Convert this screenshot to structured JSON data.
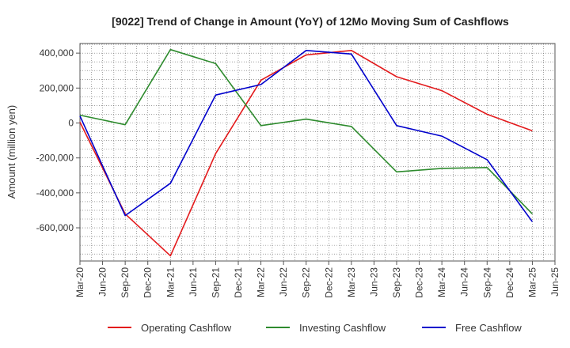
{
  "chart_data": {
    "type": "line",
    "title": "[9022]  Trend of Change in Amount (YoY) of 12Mo Moving Sum of Cashflows",
    "xlabel": "",
    "ylabel": "Amount (million yen)",
    "categories": [
      "Mar-20",
      "Jun-20",
      "Sep-20",
      "Dec-20",
      "Mar-21",
      "Jun-21",
      "Sep-21",
      "Dec-21",
      "Mar-22",
      "Jun-22",
      "Sep-22",
      "Dec-22",
      "Mar-23",
      "Jun-23",
      "Sep-23",
      "Dec-23",
      "Mar-24",
      "Jun-24",
      "Sep-24",
      "Dec-24",
      "Mar-25",
      "Jun-25"
    ],
    "y_ticks": [
      400000,
      200000,
      0,
      -200000,
      -400000,
      -600000
    ],
    "y_tick_labels": [
      "400,000",
      "200,000",
      "0",
      "-200,000",
      "-400,000",
      "-600,000"
    ],
    "ylim": [
      -790000,
      455000
    ],
    "grid": true,
    "legend_position": "bottom",
    "series": [
      {
        "name": "Operating Cashflow",
        "color": "#e31a1c",
        "values": [
          5000,
          null,
          -520000,
          null,
          -760000,
          null,
          -175000,
          null,
          245000,
          null,
          390000,
          null,
          415000,
          null,
          265000,
          null,
          185000,
          null,
          50000,
          null,
          -45000,
          null
        ]
      },
      {
        "name": "Investing Cashflow",
        "color": "#2e8b2e",
        "values": [
          45000,
          null,
          -10000,
          null,
          420000,
          null,
          340000,
          null,
          -15000,
          null,
          22000,
          null,
          -20000,
          null,
          -280000,
          null,
          -260000,
          null,
          -255000,
          null,
          -520000,
          null
        ]
      },
      {
        "name": "Free Cashflow",
        "color": "#0000cc",
        "values": [
          40000,
          null,
          -530000,
          null,
          -345000,
          null,
          160000,
          null,
          220000,
          null,
          415000,
          null,
          395000,
          null,
          -15000,
          null,
          -75000,
          null,
          -210000,
          null,
          -565000,
          null
        ]
      }
    ]
  }
}
